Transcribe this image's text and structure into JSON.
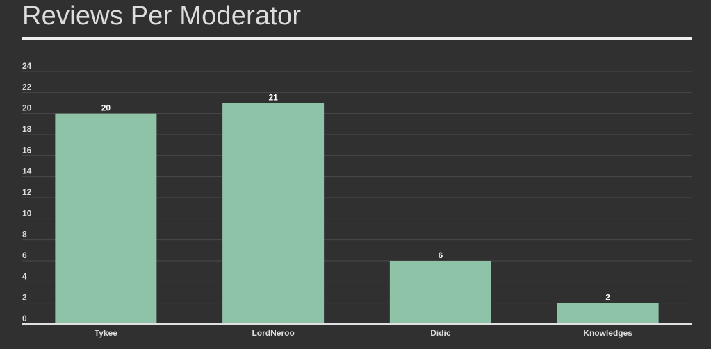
{
  "page": {
    "title": "Reviews Per Moderator"
  },
  "chart_data": {
    "type": "bar",
    "categories": [
      "Tykee",
      "LordNeroo",
      "Didic",
      "Knowledges"
    ],
    "values": [
      20,
      21,
      6,
      2
    ],
    "ylim": [
      0,
      24
    ],
    "yticks": [
      0,
      2,
      4,
      6,
      8,
      10,
      12,
      14,
      16,
      18,
      20,
      22,
      24
    ],
    "grid": true,
    "data_labels": true,
    "legend": "none",
    "bar_color": "#8fc3a8",
    "background_color": "#303030",
    "grid_color": "#4a4a4a",
    "text_color": "#dddddd"
  }
}
